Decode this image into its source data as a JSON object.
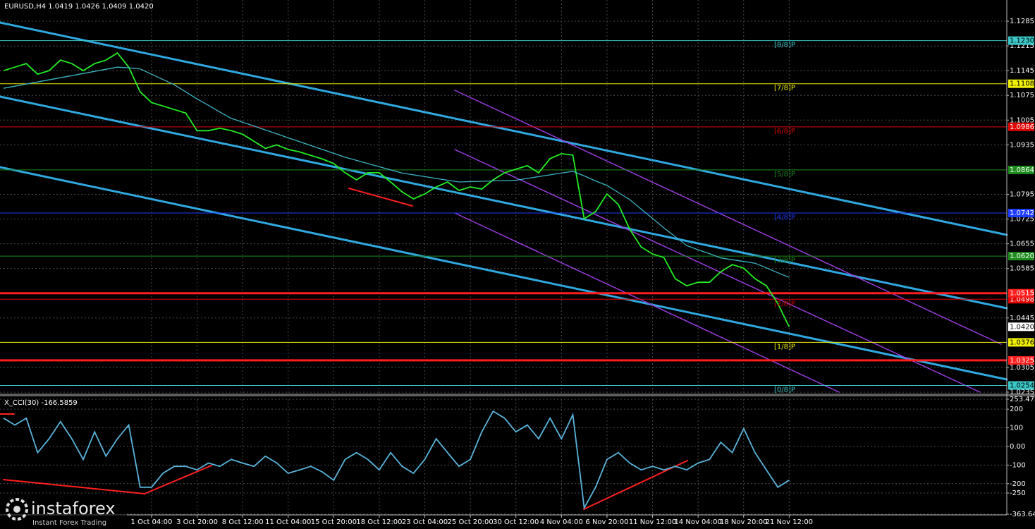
{
  "chart_data": [
    {
      "type": "line",
      "title": "EURUSD,H4  1.0419 1.0426 1.0409 1.0420",
      "categories": [
        null,
        null,
        null,
        null,
        null,
        null,
        null,
        null,
        null,
        null,
        null,
        null,
        null,
        "1 Oct 04:00",
        null,
        null,
        null,
        "3 Oct 20:00",
        null,
        null,
        null,
        "8 Oct 12:00",
        null,
        null,
        null,
        "11 Oct 04:00",
        null,
        null,
        null,
        "15 Oct 20:00",
        null,
        null,
        null,
        "18 Oct 12:00",
        null,
        null,
        null,
        "23 Oct 04:00",
        null,
        null,
        null,
        "25 Oct 20:00",
        null,
        null,
        null,
        "30 Oct 12:00",
        null,
        null,
        null,
        "4 Nov 04:00",
        null,
        null,
        null,
        "6 Nov 20:00",
        null,
        null,
        null,
        "11 Nov 12:00",
        null,
        null,
        null,
        "14 Nov 04:00",
        null,
        null,
        null,
        "18 Nov 20:00",
        null,
        null,
        null,
        "21 Nov 12:00"
      ],
      "series": [
        {
          "color": "#22ee22",
          "values": [
            1.1145,
            1.1155,
            1.1165,
            1.1135,
            1.1145,
            1.1175,
            1.1165,
            1.1145,
            1.1165,
            1.1175,
            1.1195,
            1.1155,
            1.1085,
            1.1055,
            1.1045,
            1.1035,
            1.1025,
            1.0975,
            1.0975,
            1.0982,
            1.0975,
            1.0965,
            1.0945,
            1.0925,
            1.0935,
            1.0922,
            1.0915,
            1.0905,
            1.0895,
            1.0882,
            1.0856,
            1.0836,
            1.0856,
            1.0856,
            1.083,
            1.0802,
            1.0782,
            1.0796,
            1.0816,
            1.083,
            1.0806,
            1.0816,
            1.081,
            1.0836,
            1.0856,
            1.0866,
            1.0876,
            1.0856,
            1.0896,
            1.091,
            1.0906,
            1.0726,
            1.0746,
            1.0796,
            1.0766,
            1.0696,
            1.0646,
            1.0626,
            1.0616,
            1.0556,
            1.0536,
            1.0546,
            1.0546,
            1.0576,
            1.0596,
            1.0586,
            1.0556,
            1.0536,
            1.0486,
            1.042
          ]
        },
        {
          "color": "#3cb4c4",
          "values": [
            1.1095,
            1.1101,
            1.1107,
            1.1113,
            1.1119,
            1.1125,
            1.1131,
            1.1137,
            1.1143,
            1.1149,
            1.1155,
            1.1153,
            1.115,
            1.1135,
            1.112,
            1.1105,
            1.1085,
            1.1065,
            1.1047,
            1.1028,
            1.101,
            1.0999,
            1.0988,
            1.0977,
            1.0966,
            1.0955,
            1.0944,
            1.0933,
            1.0922,
            1.0911,
            1.09,
            1.0891,
            1.0882,
            1.0873,
            1.0864,
            1.0855,
            1.085,
            1.0845,
            1.084,
            1.0835,
            1.083,
            1.0831,
            1.0832,
            1.0833,
            1.0834,
            1.0835,
            1.084,
            1.0845,
            1.085,
            1.0855,
            1.086,
            1.0847,
            1.0833,
            1.082,
            1.08,
            1.078,
            1.0753,
            1.0727,
            1.07,
            1.0675,
            1.065,
            1.0638,
            1.0627,
            1.0615,
            1.061,
            1.0605,
            1.06,
            1.0587,
            1.0573,
            1.056
          ]
        }
      ],
      "ylim": [
        1.0231,
        1.1345
      ],
      "yticks": [
        1.1285,
        1.1215,
        1.1145,
        1.1075,
        1.1005,
        1.0935,
        1.0795,
        1.0725,
        1.0655,
        1.0585,
        1.0445,
        1.0305,
        1.0235
      ],
      "grid": true,
      "levels": [
        {
          "name": "[8/8]P",
          "value": 1.123,
          "label": "1.1230",
          "color": "#3cc8c8"
        },
        {
          "name": "[7/8]P",
          "value": 1.1108,
          "color": "#f0f000"
        },
        {
          "name": "[6/8]P",
          "value": 1.0986,
          "color": "#e00000"
        },
        {
          "name": "[5/8]P",
          "value": 1.0864,
          "color": "#1e8c1e"
        },
        {
          "name": "[4/8]P",
          "value": 1.0742,
          "color": "#1e3cff"
        },
        {
          "name": "[3/8]P",
          "value": 1.062,
          "label": "1.0620",
          "color": "#1e8c1e"
        },
        {
          "name": "[2/8]P",
          "value": 1.0498,
          "color": "#e00000"
        },
        {
          "name": "[1/8]P",
          "value": 1.0376,
          "color": "#f0f000"
        },
        {
          "name": "[0/8]P",
          "value": 1.0254,
          "color": "#3cc8c8"
        }
      ],
      "support_lines": [
        {
          "value": 1.0515,
          "color": "#ff1e1e"
        },
        {
          "value": 1.0325,
          "color": "#ff1e1e"
        }
      ],
      "current_price": {
        "value": 1.042,
        "label": "1.0420"
      }
    },
    {
      "type": "line",
      "title": "X_CCI(30) -166.5859",
      "series": [
        {
          "color": "#5ab4dc",
          "values": [
            152,
            115,
            152,
            -33,
            41,
            133,
            41,
            -70,
            78,
            -52,
            41,
            115,
            -219,
            -219,
            -144,
            -107,
            -107,
            -126,
            -89,
            -107,
            -70,
            -89,
            -107,
            -52,
            -89,
            -144,
            -126,
            -107,
            -137,
            -181,
            -70,
            -33,
            -70,
            -126,
            -33,
            -107,
            -144,
            -70,
            41,
            -33,
            -107,
            -70,
            78,
            189,
            152,
            78,
            115,
            41,
            152,
            41,
            170,
            -330,
            -219,
            -70,
            -33,
            -89,
            -126,
            -107,
            -126,
            -107,
            -126,
            -89,
            -70,
            22,
            -33,
            96,
            -33,
            -126,
            -219,
            -181
          ]
        }
      ],
      "ylim": [
        -363.641,
        253.4725
      ],
      "yticks": [
        253.4725,
        200,
        100,
        {
          "value": 0,
          "label": "0.00"
        },
        -100,
        -200,
        -250,
        -363.641
      ],
      "grid": true
    }
  ],
  "watermark": {
    "brand": "instaforex",
    "slogan": "Instant Forex Trading"
  }
}
